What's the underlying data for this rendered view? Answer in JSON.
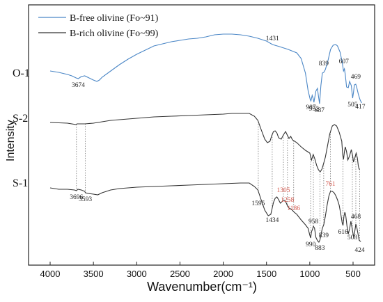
{
  "chart_data": {
    "type": "line",
    "xlabel": "Wavenumber(cm⁻¹)",
    "ylabel": "Intensity",
    "xlim": [
      4100,
      350
    ],
    "x_reversed": true,
    "xticks": [
      "4000",
      "3500",
      "3000",
      "2500",
      "2000",
      "1500",
      "1000",
      "500"
    ],
    "xtick_values": [
      4000,
      3500,
      3000,
      2500,
      2000,
      1500,
      1000,
      500
    ],
    "yticks_shown": false,
    "legend": {
      "position": "top-left",
      "entries": [
        {
          "label": "B-free olivine (Fo~91)",
          "color": "#4a86c6"
        },
        {
          "label": "B-rich olivine (Fo~99)",
          "color": "#333333"
        }
      ]
    },
    "series": [
      {
        "name": "O-1",
        "color": "#4a86c6",
        "label": "O-1",
        "points": [
          [
            4000,
            97
          ],
          [
            3900,
            99
          ],
          [
            3800,
            102
          ],
          [
            3750,
            104
          ],
          [
            3700,
            107
          ],
          [
            3674,
            108
          ],
          [
            3640,
            105
          ],
          [
            3600,
            104
          ],
          [
            3550,
            107
          ],
          [
            3500,
            110
          ],
          [
            3460,
            112
          ],
          [
            3430,
            110
          ],
          [
            3400,
            106
          ],
          [
            3300,
            97
          ],
          [
            3200,
            88
          ],
          [
            3100,
            80
          ],
          [
            3000,
            73
          ],
          [
            2900,
            67
          ],
          [
            2800,
            61
          ],
          [
            2700,
            58
          ],
          [
            2600,
            55
          ],
          [
            2500,
            53
          ],
          [
            2400,
            51
          ],
          [
            2300,
            50
          ],
          [
            2200,
            48
          ],
          [
            2100,
            45
          ],
          [
            2000,
            44
          ],
          [
            1900,
            44
          ],
          [
            1800,
            45
          ],
          [
            1700,
            47
          ],
          [
            1600,
            50
          ],
          [
            1500,
            54
          ],
          [
            1431,
            59
          ],
          [
            1350,
            62
          ],
          [
            1250,
            66
          ],
          [
            1150,
            71
          ],
          [
            1100,
            79
          ],
          [
            1050,
            100
          ],
          [
            1020,
            125
          ],
          [
            995,
            138
          ],
          [
            987,
            140
          ],
          [
            972,
            132
          ],
          [
            958,
            138
          ],
          [
            952,
            142
          ],
          [
            930,
            126
          ],
          [
            912,
            122
          ],
          [
            900,
            133
          ],
          [
            887,
            144
          ],
          [
            872,
            118
          ],
          [
            855,
            100
          ],
          [
            839,
            99
          ],
          [
            820,
            95
          ],
          [
            790,
            82
          ],
          [
            760,
            66
          ],
          [
            730,
            60
          ],
          [
            700,
            59
          ],
          [
            680,
            61
          ],
          [
            650,
            70
          ],
          [
            625,
            85
          ],
          [
            610,
            97
          ],
          [
            600,
            94
          ],
          [
            590,
            102
          ],
          [
            575,
            120
          ],
          [
            555,
            121
          ],
          [
            540,
            112
          ],
          [
            520,
            118
          ],
          [
            505,
            136
          ],
          [
            495,
            128
          ],
          [
            485,
            117
          ],
          [
            469,
            116
          ],
          [
            455,
            122
          ],
          [
            440,
            130
          ],
          [
            425,
            136
          ],
          [
            417,
            139
          ],
          [
            400,
            143
          ]
        ]
      },
      {
        "name": "S-2",
        "color": "#333333",
        "label": "S-2",
        "points": [
          [
            4000,
            171
          ],
          [
            3800,
            172
          ],
          [
            3700,
            174
          ],
          [
            3690,
            173
          ],
          [
            3600,
            173
          ],
          [
            3500,
            172
          ],
          [
            3400,
            170
          ],
          [
            3300,
            168
          ],
          [
            3200,
            167
          ],
          [
            3000,
            165
          ],
          [
            2800,
            163
          ],
          [
            2600,
            162
          ],
          [
            2400,
            161
          ],
          [
            2200,
            160
          ],
          [
            2000,
            159
          ],
          [
            1900,
            158
          ],
          [
            1700,
            158
          ],
          [
            1640,
            162
          ],
          [
            1600,
            168
          ],
          [
            1560,
            182
          ],
          [
            1520,
            195
          ],
          [
            1490,
            200
          ],
          [
            1460,
            198
          ],
          [
            1440,
            190
          ],
          [
            1420,
            184
          ],
          [
            1400,
            183
          ],
          [
            1380,
            186
          ],
          [
            1360,
            193
          ],
          [
            1330,
            195
          ],
          [
            1305,
            189
          ],
          [
            1280,
            184
          ],
          [
            1260,
            189
          ],
          [
            1240,
            194
          ],
          [
            1220,
            191
          ],
          [
            1200,
            196
          ],
          [
            1150,
            200
          ],
          [
            1100,
            206
          ],
          [
            1050,
            211
          ],
          [
            1000,
            215
          ],
          [
            980,
            225
          ],
          [
            960,
            217
          ],
          [
            940,
            224
          ],
          [
            920,
            233
          ],
          [
            900,
            239
          ],
          [
            880,
            242
          ],
          [
            860,
            238
          ],
          [
            840,
            230
          ],
          [
            820,
            221
          ],
          [
            800,
            208
          ],
          [
            770,
            188
          ],
          [
            740,
            176
          ],
          [
            715,
            174
          ],
          [
            690,
            176
          ],
          [
            660,
            185
          ],
          [
            630,
            198
          ],
          [
            620,
            217
          ],
          [
            610,
            224
          ],
          [
            600,
            213
          ],
          [
            590,
            206
          ],
          [
            575,
            213
          ],
          [
            560,
            225
          ],
          [
            540,
            219
          ],
          [
            520,
            210
          ],
          [
            505,
            219
          ],
          [
            495,
            228
          ],
          [
            480,
            222
          ],
          [
            465,
            215
          ],
          [
            450,
            222
          ],
          [
            440,
            233
          ],
          [
            430,
            238
          ],
          [
            420,
            238
          ]
        ]
      },
      {
        "name": "S-1",
        "color": "#333333",
        "label": "S-1",
        "points": [
          [
            4000,
            265
          ],
          [
            3900,
            267
          ],
          [
            3800,
            267
          ],
          [
            3720,
            268
          ],
          [
            3696,
            269
          ],
          [
            3680,
            267
          ],
          [
            3640,
            268
          ],
          [
            3600,
            270
          ],
          [
            3593,
            272
          ],
          [
            3560,
            273
          ],
          [
            3500,
            274
          ],
          [
            3450,
            275
          ],
          [
            3400,
            272
          ],
          [
            3300,
            268
          ],
          [
            3200,
            266
          ],
          [
            3000,
            264
          ],
          [
            2800,
            263
          ],
          [
            2600,
            262
          ],
          [
            2400,
            261
          ],
          [
            2200,
            260
          ],
          [
            2000,
            259
          ],
          [
            1800,
            258
          ],
          [
            1700,
            258
          ],
          [
            1640,
            263
          ],
          [
            1600,
            268
          ],
          [
            1560,
            283
          ],
          [
            1520,
            297
          ],
          [
            1480,
            305
          ],
          [
            1450,
            303
          ],
          [
            1434,
            294
          ],
          [
            1420,
            286
          ],
          [
            1400,
            280
          ],
          [
            1380,
            278
          ],
          [
            1360,
            282
          ],
          [
            1340,
            287
          ],
          [
            1305,
            283
          ],
          [
            1290,
            283
          ],
          [
            1270,
            287
          ],
          [
            1258,
            291
          ],
          [
            1240,
            294
          ],
          [
            1210,
            296
          ],
          [
            1180,
            300
          ],
          [
            1150,
            303
          ],
          [
            1100,
            311
          ],
          [
            1050,
            318
          ],
          [
            1020,
            323
          ],
          [
            1000,
            333
          ],
          [
            990,
            337
          ],
          [
            980,
            328
          ],
          [
            970,
            325
          ],
          [
            958,
            320
          ],
          [
            945,
            323
          ],
          [
            930,
            336
          ],
          [
            910,
            341
          ],
          [
            895,
            343
          ],
          [
            883,
            340
          ],
          [
            870,
            332
          ],
          [
            855,
            323
          ],
          [
            839,
            318
          ],
          [
            820,
            306
          ],
          [
            800,
            290
          ],
          [
            780,
            277
          ],
          [
            761,
            270
          ],
          [
            740,
            270
          ],
          [
            720,
            272
          ],
          [
            700,
            276
          ],
          [
            680,
            282
          ],
          [
            660,
            290
          ],
          [
            640,
            304
          ],
          [
            625,
            316
          ],
          [
            616,
            319
          ],
          [
            605,
            306
          ],
          [
            595,
            300
          ],
          [
            585,
            304
          ],
          [
            570,
            320
          ],
          [
            555,
            331
          ],
          [
            540,
            324
          ],
          [
            525,
            313
          ],
          [
            508,
            325
          ],
          [
            495,
            335
          ],
          [
            483,
            330
          ],
          [
            468,
            317
          ],
          [
            455,
            323
          ],
          [
            440,
            333
          ],
          [
            430,
            340
          ],
          [
            424,
            341
          ],
          [
            410,
            342
          ]
        ]
      }
    ],
    "peak_labels": [
      {
        "text": "3674",
        "x": 3674,
        "series": "O-1",
        "color": "#222222"
      },
      {
        "text": "1431",
        "x": 1431,
        "series": "O-1",
        "color": "#222222"
      },
      {
        "text": "987",
        "x": 987,
        "series": "O-1",
        "color": "#222222"
      },
      {
        "text": "952",
        "x": 952,
        "series": "O-1",
        "color": "#222222"
      },
      {
        "text": "839",
        "x": 839,
        "series": "O-1",
        "color": "#222222"
      },
      {
        "text": "887",
        "x": 887,
        "series": "O-1",
        "color": "#222222"
      },
      {
        "text": "607",
        "x": 607,
        "series": "O-1",
        "color": "#222222"
      },
      {
        "text": "469",
        "x": 469,
        "series": "O-1",
        "color": "#222222"
      },
      {
        "text": "505",
        "x": 505,
        "series": "O-1",
        "color": "#222222"
      },
      {
        "text": "417",
        "x": 417,
        "series": "O-1",
        "color": "#222222"
      },
      {
        "text": "3696",
        "x": 3696,
        "series": "S-1",
        "color": "#222222"
      },
      {
        "text": "3593",
        "x": 3593,
        "series": "S-1",
        "color": "#222222"
      },
      {
        "text": "1595",
        "x": 1595,
        "series": "S-1",
        "color": "#222222"
      },
      {
        "text": "1305",
        "x": 1305,
        "series": "S-1",
        "color": "#d4574c"
      },
      {
        "text": "1258",
        "x": 1258,
        "series": "S-1",
        "color": "#d4574c"
      },
      {
        "text": "1186",
        "x": 1186,
        "series": "S-1",
        "color": "#d4574c"
      },
      {
        "text": "1434",
        "x": 1434,
        "series": "S-1",
        "color": "#222222"
      },
      {
        "text": "761",
        "x": 761,
        "series": "S-1",
        "color": "#d4574c"
      },
      {
        "text": "958",
        "x": 958,
        "series": "S-1",
        "color": "#222222"
      },
      {
        "text": "839",
        "x": 839,
        "series": "S-1",
        "color": "#222222"
      },
      {
        "text": "616",
        "x": 616,
        "series": "S-1",
        "color": "#222222"
      },
      {
        "text": "468",
        "x": 468,
        "series": "S-1",
        "color": "#222222"
      },
      {
        "text": "990",
        "x": 990,
        "series": "S-1",
        "color": "#222222"
      },
      {
        "text": "883",
        "x": 883,
        "series": "S-1",
        "color": "#222222"
      },
      {
        "text": "508",
        "x": 508,
        "series": "S-1",
        "color": "#222222"
      },
      {
        "text": "424",
        "x": 424,
        "series": "S-1",
        "color": "#222222"
      }
    ],
    "guide_lines_at": [
      3696,
      3593,
      1595,
      1434,
      1305,
      1258,
      1186,
      990,
      958,
      883,
      839,
      761,
      616,
      508,
      468,
      424
    ]
  }
}
